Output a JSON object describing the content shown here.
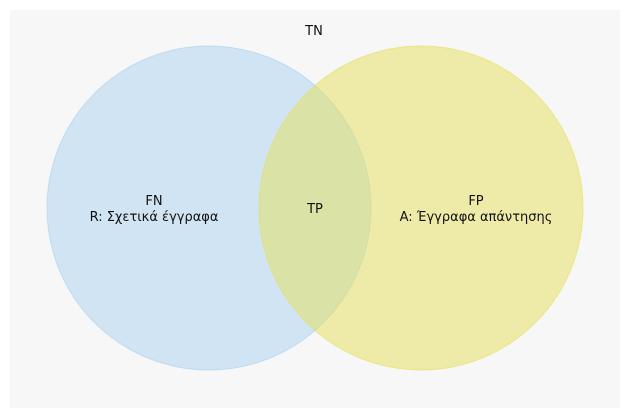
{
  "venn": {
    "outside_label": "TN",
    "left_set": {
      "title": "FN",
      "name": "R: Σχετικά έγγραφα",
      "color": "#a9d1f0"
    },
    "right_set": {
      "title": "FP",
      "name": "A: Έγγραφα απάντησης",
      "color": "#e6e05a"
    },
    "intersection_label": "TP",
    "background_color": "#f7f7f7"
  }
}
